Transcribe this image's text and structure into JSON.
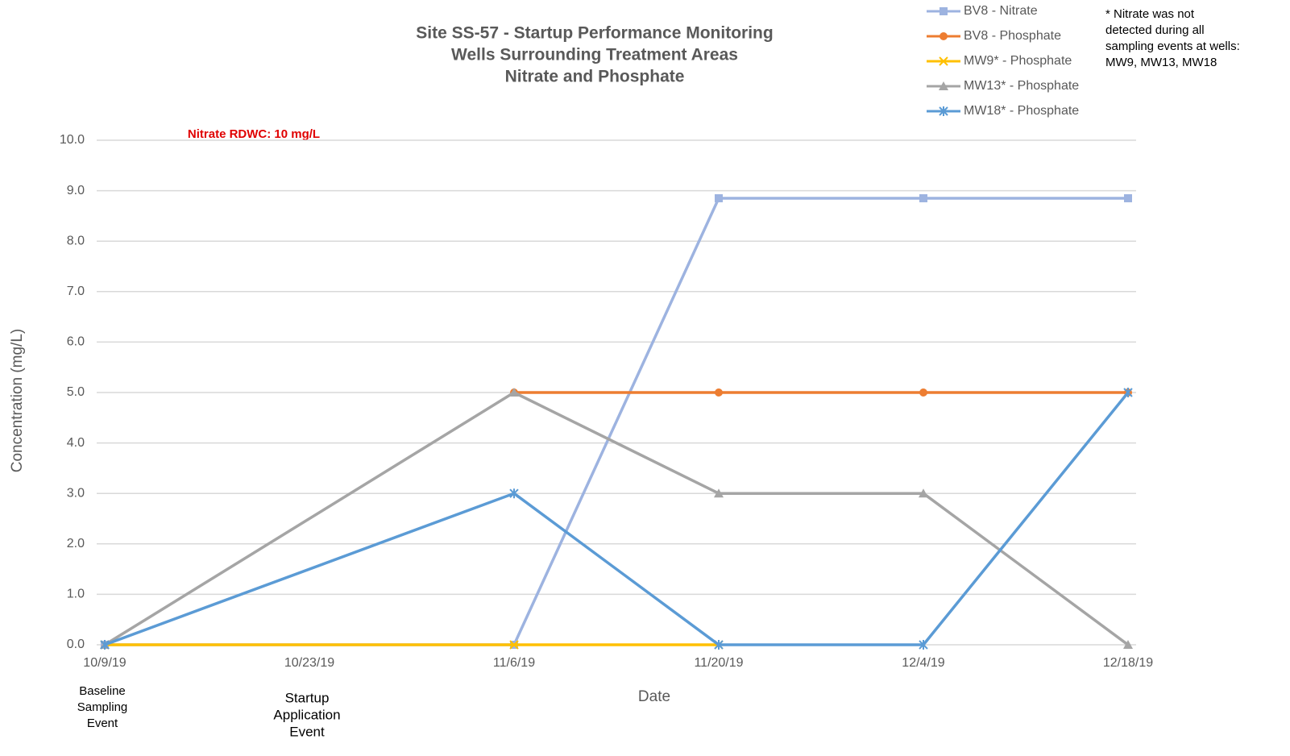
{
  "chart_data": {
    "type": "line",
    "title": [
      "Site SS-57 - Startup Performance Monitoring",
      "Wells Surrounding Treatment Areas",
      "Nitrate and Phosphate"
    ],
    "x_label": "Date",
    "y_label": "Concentration (mg/L)",
    "annotation": "Nitrate RDWC: 10 mg/L",
    "footnote": [
      "* Nitrate was not",
      "detected during all",
      "sampling events at wells:",
      "MW9, MW13, MW18"
    ],
    "event_labels": [
      {
        "x": "10/9/19",
        "lines": [
          "Baseline",
          "Sampling",
          "Event"
        ]
      },
      {
        "x": "10/23/19",
        "lines": [
          "Startup",
          "Application",
          "Event"
        ]
      }
    ],
    "x": [
      "10/9/19",
      "11/6/19",
      "11/20/19",
      "12/4/19",
      "12/18/19"
    ],
    "xlim": [
      "10/9/19",
      "12/18/19"
    ],
    "xticks": [
      "10/9/19",
      "10/23/19",
      "11/6/19",
      "11/20/19",
      "12/4/19",
      "12/18/19"
    ],
    "ylim": [
      0,
      10
    ],
    "yticks": [
      {
        "value": 0,
        "label": "0.0"
      },
      {
        "value": 1,
        "label": "1.0"
      },
      {
        "value": 2,
        "label": "2.0"
      },
      {
        "value": 3,
        "label": "3.0"
      },
      {
        "value": 4,
        "label": "4.0"
      },
      {
        "value": 5,
        "label": "5.0"
      },
      {
        "value": 6,
        "label": "6.0"
      },
      {
        "value": 7,
        "label": "7.0"
      },
      {
        "value": 8,
        "label": "8.0"
      },
      {
        "value": 9,
        "label": "9.0"
      },
      {
        "value": 10,
        "label": "10.0"
      }
    ],
    "grid": true,
    "legend": "top-right",
    "series": [
      {
        "name": "BV8 - Nitrate",
        "color": "#9db3e0",
        "marker": "square",
        "values": [
          0,
          0,
          8.85,
          8.85,
          8.85
        ]
      },
      {
        "name": "BV8 - Phosphate",
        "color": "#ed7d31",
        "marker": "circle",
        "values": [
          null,
          5,
          5,
          5,
          5
        ]
      },
      {
        "name": "MW9* - Phosphate",
        "color": "#ffc000",
        "marker": "x",
        "values": [
          0,
          0,
          0,
          null,
          null
        ]
      },
      {
        "name": "MW13* - Phosphate",
        "color": "#a5a5a5",
        "marker": "triangle",
        "values": [
          0,
          5,
          3,
          3,
          0
        ]
      },
      {
        "name": "MW18* - Phosphate",
        "color": "#5b9bd5",
        "marker": "star",
        "values": [
          0,
          3,
          0,
          0,
          5
        ]
      }
    ]
  }
}
